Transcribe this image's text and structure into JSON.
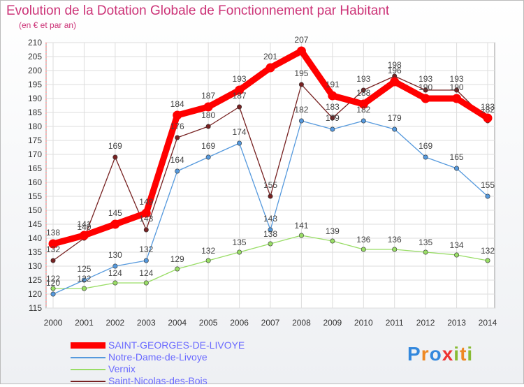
{
  "title": "Evolution de la Dotation Globale de Fonctionnement par Habitant",
  "subtitle": "(en € et par an)",
  "chart_data": {
    "type": "line",
    "x": [
      "2000",
      "2001",
      "2002",
      "2003",
      "2004",
      "2005",
      "2006",
      "2007",
      "2008",
      "2009",
      "2010",
      "2011",
      "2012",
      "2013",
      "2014"
    ],
    "ylim": [
      115,
      210
    ],
    "yticks": [
      115,
      120,
      125,
      130,
      135,
      140,
      145,
      150,
      155,
      160,
      165,
      170,
      175,
      180,
      185,
      190,
      195,
      200,
      205,
      210
    ],
    "grid": true,
    "legend_position": "bottom-left",
    "series": [
      {
        "name": "SAINT-GEORGES-DE-LIVOYE",
        "color": "#ff0000",
        "values": [
          138,
          141,
          145,
          149,
          184,
          187,
          193,
          201,
          207,
          191,
          188,
          196,
          190,
          190,
          183
        ]
      },
      {
        "name": "Notre-Dame-de-Livoye",
        "color": "#5599dd",
        "values": [
          120,
          125,
          130,
          132,
          164,
          169,
          174,
          143,
          182,
          179,
          182,
          179,
          169,
          165,
          155
        ]
      },
      {
        "name": "Vernix",
        "color": "#99dd66",
        "values": [
          122,
          122,
          124,
          124,
          129,
          132,
          135,
          138,
          141,
          139,
          136,
          136,
          135,
          134,
          132
        ]
      },
      {
        "name": "Saint-Nicolas-des-Bois",
        "color": "#772222",
        "values": [
          132,
          140,
          169,
          143,
          176,
          180,
          187,
          155,
          195,
          183,
          193,
          198,
          193,
          193,
          182
        ]
      }
    ]
  },
  "logo": {
    "letters": [
      "P",
      "r",
      "o",
      "x",
      "i",
      "t",
      "i"
    ],
    "colors": [
      "#3388dd",
      "#ee8822",
      "#3388dd",
      "#ee3333",
      "#88bb33",
      "#ee8822",
      "#88bb33"
    ]
  }
}
